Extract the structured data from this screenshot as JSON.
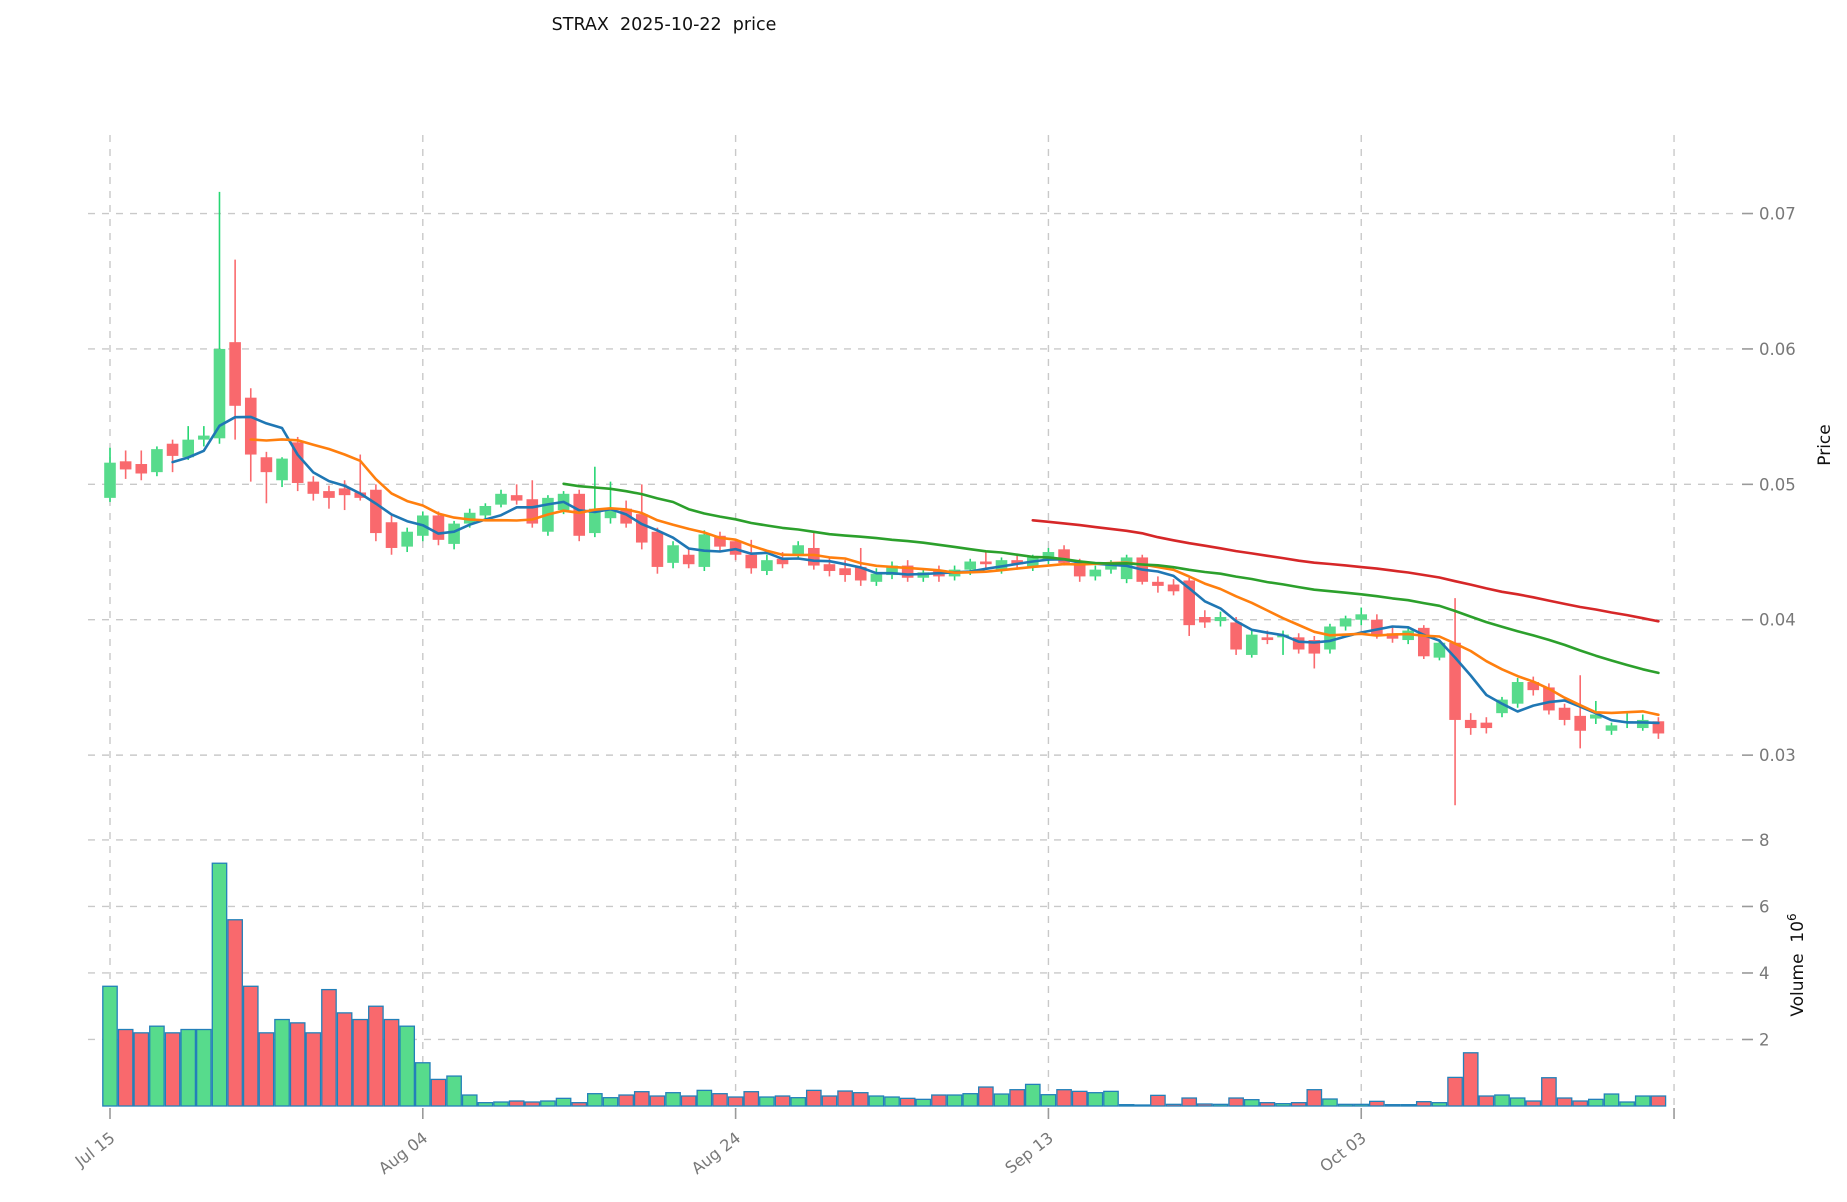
{
  "chart_data": {
    "type": "candlestick",
    "title": "STRAX  2025-10-22  price",
    "symbol": "STRAX",
    "as_of_date": "2025-10-22",
    "grid": "dashed",
    "legend_position": "none",
    "price_axis": {
      "label": "Price",
      "ticks": [
        {
          "label": "0.07",
          "value": 0.07
        },
        {
          "label": "0.06",
          "value": 0.06
        },
        {
          "label": "0.05",
          "value": 0.05
        },
        {
          "label": "0.04",
          "value": 0.04
        },
        {
          "label": "0.03",
          "value": 0.03
        }
      ],
      "ylim": [
        0.0258,
        0.0758
      ]
    },
    "volume_axis": {
      "label": "Volume",
      "unit_mantissa": "10",
      "unit_exponent": "6",
      "ticks": [
        {
          "label": "8",
          "value": 8
        },
        {
          "label": "6",
          "value": 6
        },
        {
          "label": "4",
          "value": 4
        },
        {
          "label": "2",
          "value": 2
        }
      ],
      "ylim": [
        0,
        8.66
      ]
    },
    "x_axis": {
      "ticks": [
        {
          "label": "Jul 15",
          "candle_index": 0
        },
        {
          "label": "Aug 04",
          "candle_index": 20
        },
        {
          "label": "Aug 24",
          "candle_index": 40
        },
        {
          "label": "Sep 13",
          "candle_index": 60
        },
        {
          "label": "Oct 03",
          "candle_index": 80
        },
        {
          "label": "",
          "candle_index": 100
        }
      ]
    },
    "moving_averages": [
      {
        "name": "MA5",
        "window": 5,
        "color": "#1f77b4"
      },
      {
        "name": "MA10",
        "window": 10,
        "color": "#ff7f0e"
      },
      {
        "name": "MA30",
        "window": 30,
        "color": "#2ca02c"
      },
      {
        "name": "MA60",
        "window": 60,
        "color": "#d62728"
      }
    ],
    "candles": {
      "open": [
        0.049,
        0.0517,
        0.0515,
        0.0509,
        0.053,
        0.052,
        0.0533,
        0.0534,
        0.0605,
        0.0564,
        0.052,
        0.0503,
        0.0531,
        0.0502,
        0.0495,
        0.0497,
        0.0494,
        0.0496,
        0.0472,
        0.0454,
        0.0462,
        0.0477,
        0.0456,
        0.0471,
        0.0477,
        0.0485,
        0.0492,
        0.0489,
        0.0465,
        0.0481,
        0.0493,
        0.0464,
        0.0475,
        0.0482,
        0.0478,
        0.0465,
        0.0442,
        0.0448,
        0.0439,
        0.0462,
        0.0458,
        0.0448,
        0.0436,
        0.0445,
        0.0448,
        0.0453,
        0.0441,
        0.0438,
        0.0439,
        0.0428,
        0.0433,
        0.044,
        0.0431,
        0.0436,
        0.0432,
        0.0437,
        0.0443,
        0.0437,
        0.0444,
        0.0439,
        0.0444,
        0.0452,
        0.0442,
        0.0432,
        0.0437,
        0.043,
        0.0446,
        0.0428,
        0.0426,
        0.0429,
        0.0402,
        0.0399,
        0.0398,
        0.0374,
        0.0387,
        0.0387,
        0.0387,
        0.0385,
        0.0378,
        0.0395,
        0.04,
        0.04,
        0.039,
        0.0385,
        0.0394,
        0.0372,
        0.0383,
        0.0326,
        0.0324,
        0.0331,
        0.0338,
        0.0354,
        0.035,
        0.0335,
        0.0329,
        0.0327,
        0.0318,
        0.0324,
        0.032,
        0.0325
      ],
      "high": [
        0.0527,
        0.0525,
        0.0525,
        0.0528,
        0.0533,
        0.0543,
        0.0543,
        0.0716,
        0.0666,
        0.0571,
        0.0524,
        0.052,
        0.0535,
        0.0506,
        0.0499,
        0.0503,
        0.0522,
        0.05,
        0.0478,
        0.0468,
        0.048,
        0.048,
        0.0473,
        0.0482,
        0.0486,
        0.0496,
        0.05,
        0.0503,
        0.0492,
        0.0495,
        0.0496,
        0.0513,
        0.0502,
        0.0488,
        0.05,
        0.0468,
        0.0458,
        0.0452,
        0.0466,
        0.0465,
        0.046,
        0.0459,
        0.0448,
        0.045,
        0.0458,
        0.0464,
        0.0446,
        0.0444,
        0.0453,
        0.0438,
        0.0443,
        0.0444,
        0.0438,
        0.044,
        0.044,
        0.0445,
        0.0451,
        0.0446,
        0.0448,
        0.0448,
        0.0453,
        0.0455,
        0.0445,
        0.044,
        0.0444,
        0.0448,
        0.0448,
        0.0432,
        0.043,
        0.0431,
        0.0407,
        0.0406,
        0.0402,
        0.0392,
        0.0392,
        0.0392,
        0.039,
        0.0388,
        0.0397,
        0.0403,
        0.0409,
        0.0404,
        0.0395,
        0.0394,
        0.0396,
        0.0385,
        0.0416,
        0.0331,
        0.0328,
        0.0343,
        0.0357,
        0.0358,
        0.0353,
        0.0338,
        0.0359,
        0.034,
        0.0324,
        0.0332,
        0.033,
        0.0328
      ],
      "low": [
        0.0487,
        0.0504,
        0.0503,
        0.0506,
        0.0509,
        0.0518,
        0.0528,
        0.053,
        0.0533,
        0.0502,
        0.0486,
        0.0498,
        0.0495,
        0.0488,
        0.0482,
        0.0481,
        0.0488,
        0.0458,
        0.0448,
        0.045,
        0.0458,
        0.0455,
        0.0452,
        0.0468,
        0.0474,
        0.0483,
        0.0485,
        0.0468,
        0.0462,
        0.0478,
        0.0458,
        0.0461,
        0.0471,
        0.0468,
        0.0452,
        0.0434,
        0.0438,
        0.0438,
        0.0436,
        0.045,
        0.0444,
        0.0434,
        0.0433,
        0.0438,
        0.0445,
        0.0437,
        0.0432,
        0.0428,
        0.0425,
        0.0425,
        0.043,
        0.0428,
        0.0428,
        0.0428,
        0.0429,
        0.0433,
        0.0438,
        0.0434,
        0.0437,
        0.0436,
        0.0441,
        0.044,
        0.0428,
        0.0429,
        0.0434,
        0.0427,
        0.0426,
        0.042,
        0.0418,
        0.0388,
        0.0394,
        0.0395,
        0.0374,
        0.0372,
        0.0382,
        0.0374,
        0.0375,
        0.0364,
        0.0375,
        0.0392,
        0.0396,
        0.0386,
        0.0383,
        0.0382,
        0.0371,
        0.037,
        0.0263,
        0.0315,
        0.0316,
        0.0328,
        0.0335,
        0.0344,
        0.033,
        0.0322,
        0.0305,
        0.0323,
        0.0315,
        0.032,
        0.0318,
        0.0312
      ],
      "close": [
        0.0516,
        0.0511,
        0.0508,
        0.0526,
        0.0521,
        0.0533,
        0.0536,
        0.06,
        0.0558,
        0.0522,
        0.0509,
        0.0519,
        0.0501,
        0.0493,
        0.049,
        0.0492,
        0.049,
        0.0464,
        0.0453,
        0.0465,
        0.0477,
        0.0459,
        0.0471,
        0.0479,
        0.0484,
        0.0493,
        0.0488,
        0.0471,
        0.049,
        0.0493,
        0.0462,
        0.0482,
        0.0481,
        0.0471,
        0.0457,
        0.0439,
        0.0455,
        0.0441,
        0.0463,
        0.0454,
        0.0448,
        0.0438,
        0.0444,
        0.0441,
        0.0455,
        0.044,
        0.0436,
        0.0433,
        0.0429,
        0.0434,
        0.044,
        0.0431,
        0.0435,
        0.0432,
        0.0437,
        0.0443,
        0.0441,
        0.0444,
        0.0441,
        0.0446,
        0.045,
        0.0442,
        0.0432,
        0.0437,
        0.0442,
        0.0446,
        0.0428,
        0.0425,
        0.0421,
        0.0396,
        0.0398,
        0.0402,
        0.0378,
        0.0389,
        0.0385,
        0.0389,
        0.0378,
        0.0375,
        0.0395,
        0.0401,
        0.0404,
        0.0389,
        0.0386,
        0.0392,
        0.0373,
        0.0383,
        0.0326,
        0.032,
        0.032,
        0.0341,
        0.0354,
        0.0348,
        0.0333,
        0.0326,
        0.0318,
        0.033,
        0.0322,
        0.0325,
        0.0326,
        0.0316
      ]
    },
    "volume_millions": [
      3.6,
      2.3,
      2.2,
      2.4,
      2.2,
      2.3,
      2.3,
      7.3,
      5.6,
      3.6,
      2.2,
      2.6,
      2.5,
      2.2,
      3.5,
      2.8,
      2.6,
      3.0,
      2.6,
      2.4,
      1.3,
      0.8,
      0.9,
      0.33,
      0.1,
      0.12,
      0.15,
      0.12,
      0.15,
      0.23,
      0.1,
      0.37,
      0.25,
      0.33,
      0.43,
      0.3,
      0.4,
      0.3,
      0.47,
      0.37,
      0.27,
      0.43,
      0.27,
      0.3,
      0.25,
      0.47,
      0.3,
      0.45,
      0.4,
      0.3,
      0.27,
      0.23,
      0.2,
      0.33,
      0.33,
      0.37,
      0.57,
      0.36,
      0.49,
      0.65,
      0.34,
      0.49,
      0.44,
      0.4,
      0.44,
      0.04,
      0.03,
      0.32,
      0.05,
      0.24,
      0.06,
      0.05,
      0.24,
      0.19,
      0.1,
      0.07,
      0.1,
      0.49,
      0.21,
      0.05,
      0.05,
      0.14,
      0.04,
      0.04,
      0.13,
      0.1,
      0.86,
      1.6,
      0.3,
      0.33,
      0.24,
      0.15,
      0.85,
      0.24,
      0.15,
      0.2,
      0.36,
      0.12,
      0.3,
      0.3
    ]
  },
  "colors": {
    "up_body": "#57db8c",
    "up_wick": "#26d673",
    "down_body": "#f9696d",
    "down_wick": "#fa6a6e",
    "volume_bar_edge": "#2380b9",
    "grid": "#c9c9c9",
    "tick_mark": "#9a9a9a",
    "tick_text": "#787878",
    "title_text": "#111111",
    "axis_label_text": "#111111",
    "background": "#ffffff"
  }
}
